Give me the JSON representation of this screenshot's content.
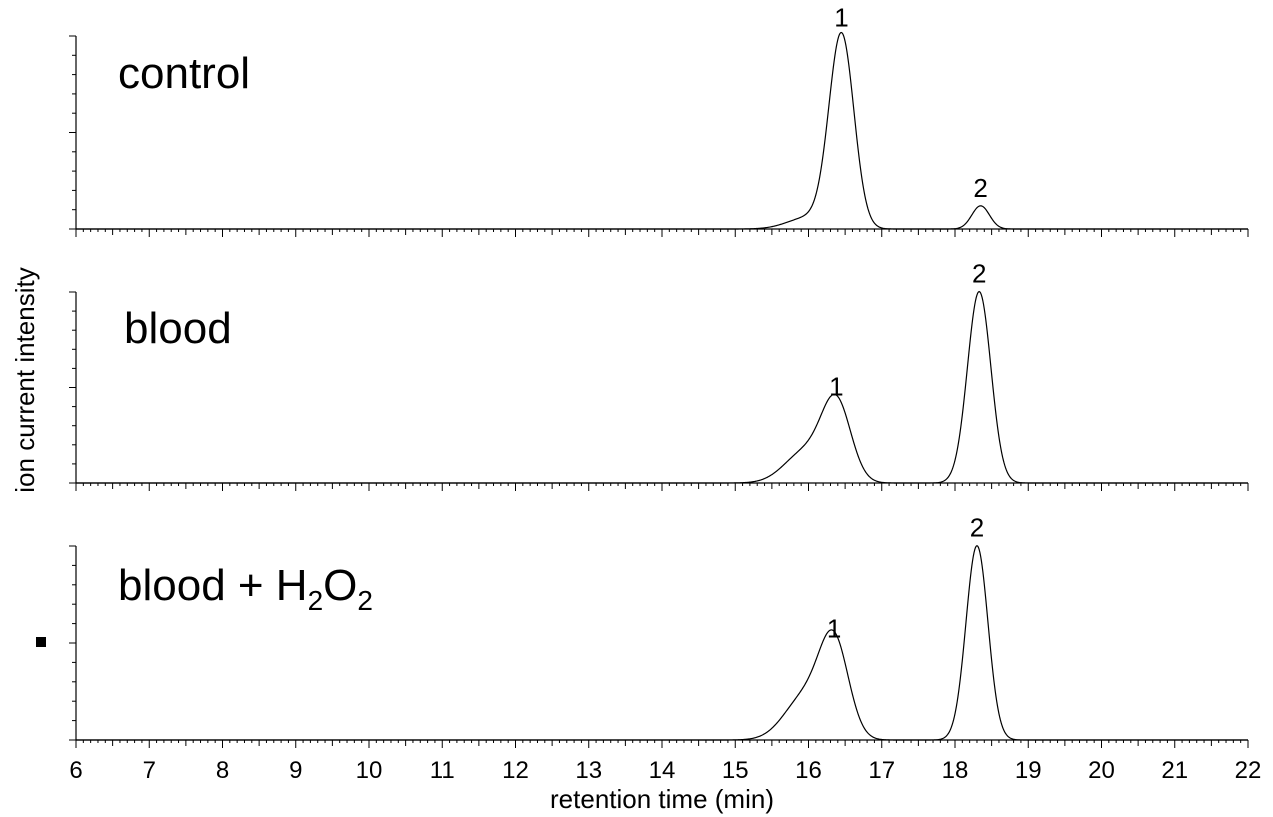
{
  "chart_data": {
    "type": "line",
    "xlabel": "retention time (min)",
    "ylabel": "ion current intensity",
    "xlim": [
      6,
      22
    ],
    "x_ticks": [
      "6",
      "7",
      "8",
      "9",
      "10",
      "11",
      "12",
      "13",
      "14",
      "15",
      "16",
      "17",
      "18",
      "19",
      "20",
      "21",
      "22"
    ],
    "grid": false,
    "panels": [
      {
        "label": "control",
        "label_sub": "",
        "ylim": [
          0,
          1.05
        ],
        "peaks": [
          {
            "label": "1",
            "rt": 16.45,
            "height": 1.0,
            "width": 0.17,
            "shoulder_rt": 16.0,
            "shoulder_height": 0.06
          },
          {
            "label": "2",
            "rt": 18.35,
            "height": 0.12,
            "width": 0.12
          }
        ]
      },
      {
        "label": "blood",
        "label_sub": "",
        "ylim": [
          0,
          1.05
        ],
        "peaks": [
          {
            "label": "1",
            "rt": 16.38,
            "height": 0.41,
            "width": 0.2,
            "shoulder_rt": 15.95,
            "shoulder_height": 0.16
          },
          {
            "label": "2",
            "rt": 18.33,
            "height": 1.0,
            "width": 0.16
          }
        ]
      },
      {
        "label": "blood + H",
        "label_parts": [
          "blood + H",
          "2",
          "O",
          "2"
        ],
        "ylim": [
          0,
          1.05
        ],
        "peaks": [
          {
            "label": "1",
            "rt": 16.35,
            "height": 0.48,
            "width": 0.2,
            "shoulder_rt": 15.95,
            "shoulder_height": 0.22
          },
          {
            "label": "2",
            "rt": 18.3,
            "height": 1.0,
            "width": 0.15
          }
        ]
      }
    ]
  }
}
